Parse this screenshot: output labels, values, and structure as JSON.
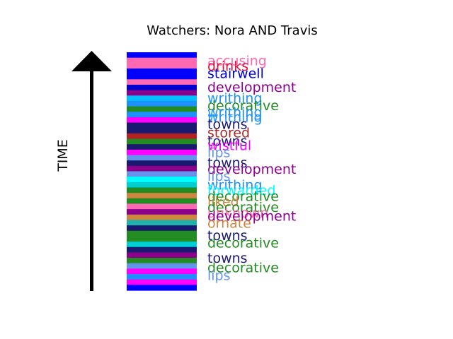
{
  "chart_data": {
    "type": "bar",
    "title": "Watchers: Nora AND Travis",
    "ylabel": "TIME",
    "legend": "right",
    "grid": false,
    "stripe_colors": [
      "#0000ff",
      "#ff69b4",
      "#ff69b4",
      "#0000ff",
      "#0000ff",
      "#ff69b4",
      "#0000cd",
      "#8b008b",
      "#00bfff",
      "#1e90ff",
      "#228b22",
      "#1e90ff",
      "#ff00ff",
      "#191970",
      "#191970",
      "#b22222",
      "#228b22",
      "#191970",
      "#ff00ff",
      "#6495ed",
      "#191970",
      "#8b008b",
      "#6495ed",
      "#00ffff",
      "#00ced1",
      "#228b22",
      "#cd853f",
      "#228b22",
      "#ff69b4",
      "#8b008b",
      "#cd853f",
      "#20b2aa",
      "#191970",
      "#228b22",
      "#228b22",
      "#00ced1",
      "#191970",
      "#8b008b",
      "#228b22",
      "#6495ed",
      "#ff00ff",
      "#1e90ff",
      "#ff00ff",
      "#0000ff"
    ],
    "words": [
      {
        "text": "accusing",
        "color": "#ff69b4",
        "y": 0.966
      },
      {
        "text": "drinks",
        "color": "#dc143c",
        "y": 0.944
      },
      {
        "text": "stairwell",
        "color": "#0000cd",
        "y": 0.913
      },
      {
        "text": "development",
        "color": "#8b008b",
        "y": 0.855
      },
      {
        "text": "writhing",
        "color": "#1e90ff",
        "y": 0.808
      },
      {
        "text": "decorative",
        "color": "#228b22",
        "y": 0.778
      },
      {
        "text": "writhing",
        "color": "#1e90ff",
        "y": 0.75
      },
      {
        "text": "writhing",
        "color": "#1e90ff",
        "y": 0.729
      },
      {
        "text": "towns",
        "color": "#191970",
        "y": 0.699
      },
      {
        "text": "stored",
        "color": "#a52a2a",
        "y": 0.663
      },
      {
        "text": "towns",
        "color": "#191970",
        "y": 0.627
      },
      {
        "text": "wistful",
        "color": "#ff00ff",
        "y": 0.61
      },
      {
        "text": "lips",
        "color": "#6495ed",
        "y": 0.58
      },
      {
        "text": "towns",
        "color": "#191970",
        "y": 0.537
      },
      {
        "text": "development",
        "color": "#8b008b",
        "y": 0.51
      },
      {
        "text": "lips",
        "color": "#6495ed",
        "y": 0.481
      },
      {
        "text": "writhing",
        "color": "#1e90ff",
        "y": 0.444
      },
      {
        "text": "forwarded",
        "color": "#00ffff",
        "y": 0.421
      },
      {
        "text": "decorative",
        "color": "#228b22",
        "y": 0.396
      },
      {
        "text": "liked",
        "color": "#cd853f",
        "y": 0.374
      },
      {
        "text": "decorative",
        "color": "#228b22",
        "y": 0.35
      },
      {
        "text": "unknown",
        "color": "#ff69b4",
        "y": 0.327
      },
      {
        "text": "development",
        "color": "#8b008b",
        "y": 0.313
      },
      {
        "text": "ornate",
        "color": "#cd853f",
        "y": 0.284
      },
      {
        "text": "towns",
        "color": "#191970",
        "y": 0.231
      },
      {
        "text": "decorative",
        "color": "#228b22",
        "y": 0.2
      },
      {
        "text": "towns",
        "color": "#191970",
        "y": 0.136
      },
      {
        "text": "decorative",
        "color": "#228b22",
        "y": 0.096
      },
      {
        "text": "lips",
        "color": "#6495ed",
        "y": 0.064
      }
    ]
  }
}
